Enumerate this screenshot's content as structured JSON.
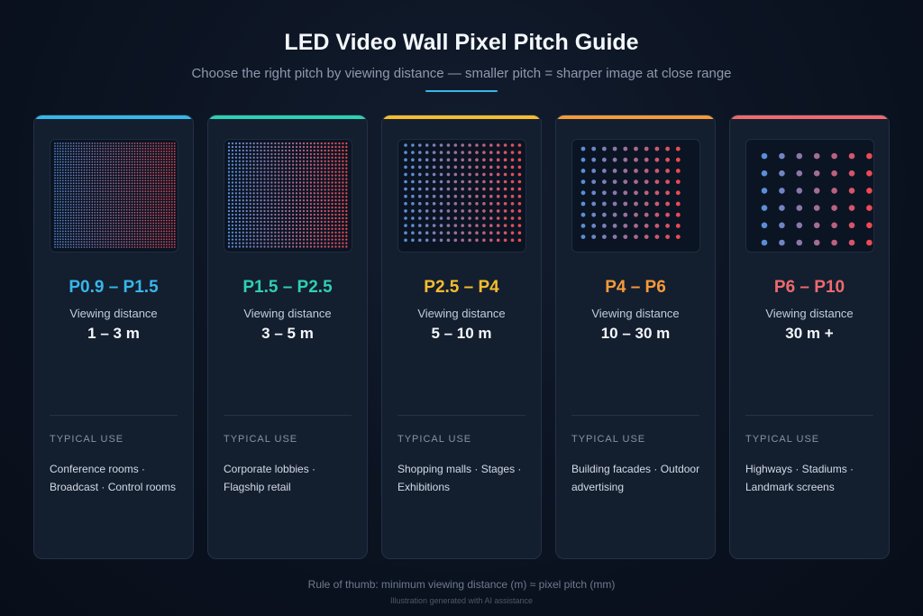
{
  "title": "LED Video Wall Pixel Pitch Guide",
  "subtitle": "Choose the right pitch by viewing distance — smaller pitch = sharper image at close range",
  "cards": [
    {
      "pitch": "P0.9 – P1.5",
      "viewing_label": "Viewing distance",
      "distance": "1 – 3 m",
      "typical_label": "TYPICAL USE",
      "use": "Conference rooms · Broadcast · Control rooms",
      "accent": "#38b6ea",
      "density": "finest"
    },
    {
      "pitch": "P1.5 – P2.5",
      "viewing_label": "Viewing distance",
      "distance": "3 – 5 m",
      "typical_label": "TYPICAL USE",
      "use": "Corporate lobbies · Flagship retail",
      "accent": "#2fcfb4",
      "density": "fine"
    },
    {
      "pitch": "P2.5 – P4",
      "viewing_label": "Viewing distance",
      "distance": "5 – 10 m",
      "typical_label": "TYPICAL USE",
      "use": "Shopping malls · Stages · Exhibitions",
      "accent": "#f5bd2e",
      "density": "medium"
    },
    {
      "pitch": "P4 – P6",
      "viewing_label": "Viewing distance",
      "distance": "10 – 30 m",
      "typical_label": "TYPICAL USE",
      "use": "Building facades · Outdoor advertising",
      "accent": "#f59a3a",
      "density": "coarse"
    },
    {
      "pitch": "P6 – P10",
      "viewing_label": "Viewing distance",
      "distance": "30 m +",
      "typical_label": "TYPICAL USE",
      "use": "Highways · Stadiums · Landmark screens",
      "accent": "#ee6a6e",
      "density": "coarsest"
    }
  ],
  "rule_of_thumb": "Rule of thumb: minimum viewing distance (m) ≈ pixel pitch (mm)",
  "credit": "Illustration generated with AI assistance",
  "colors": {
    "dot_left": "#5a8fd6",
    "dot_right": "#ec4a55",
    "subtitle_rule": "#38b6ea"
  }
}
